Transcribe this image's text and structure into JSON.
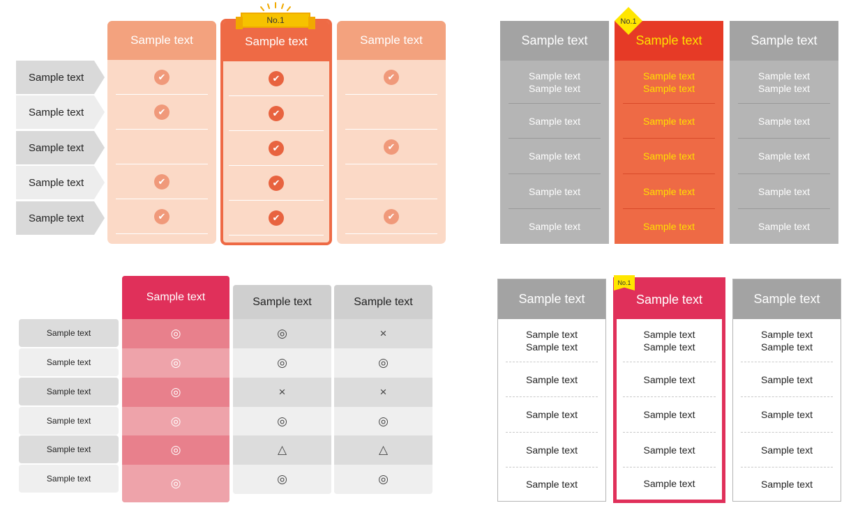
{
  "table1": {
    "badge": "No.1",
    "columns": [
      "Sample text",
      "Sample text",
      "Sample text"
    ],
    "rows": [
      "Sample text",
      "Sample text",
      "Sample text",
      "Sample text",
      "Sample text"
    ],
    "check_glyph": "✔",
    "checks": [
      [
        1,
        1,
        1
      ],
      [
        1,
        1,
        0
      ],
      [
        0,
        1,
        1
      ],
      [
        1,
        1,
        0
      ],
      [
        1,
        1,
        1
      ]
    ],
    "colors": {
      "header": "#f3a27e",
      "highlight": "#ee6a45",
      "body": "#fbd9c6"
    }
  },
  "table2": {
    "badge": "No.1",
    "columns": [
      "Sample text",
      "Sample text",
      "Sample text"
    ],
    "first_cell_line1": "Sample text",
    "first_cell_line2": "Sample text",
    "cells": [
      "Sample text",
      "Sample text",
      "Sample text",
      "Sample text"
    ],
    "colors": {
      "header": "#a3a3a3",
      "highlight_header": "#e63a26",
      "highlight_body": "#ee6a45",
      "highlight_text": "#ffe000"
    }
  },
  "table3": {
    "columns": [
      "Sample text",
      "Sample text",
      "Sample text"
    ],
    "rows": [
      "Sample text",
      "Sample text",
      "Sample text",
      "Sample text",
      "Sample text",
      "Sample text"
    ],
    "marks": [
      [
        "◎",
        "◎",
        "×"
      ],
      [
        "◎",
        "◎",
        "◎"
      ],
      [
        "◎",
        "×",
        "×"
      ],
      [
        "◎",
        "◎",
        "◎"
      ],
      [
        "◎",
        "△",
        "△"
      ],
      [
        "◎",
        "◎",
        "◎"
      ]
    ],
    "colors": {
      "highlight_header": "#e0305a",
      "pink_dark": "#e8808c",
      "pink_light": "#eea3aa"
    }
  },
  "table4": {
    "badge": "No.1",
    "columns": [
      "Sample text",
      "Sample text",
      "Sample text"
    ],
    "first_cell_line1": "Sample text",
    "first_cell_line2": "Sample text",
    "cells": [
      "Sample text",
      "Sample text",
      "Sample text",
      "Sample text"
    ],
    "colors": {
      "header": "#a3a3a3",
      "highlight": "#e0305a"
    }
  }
}
